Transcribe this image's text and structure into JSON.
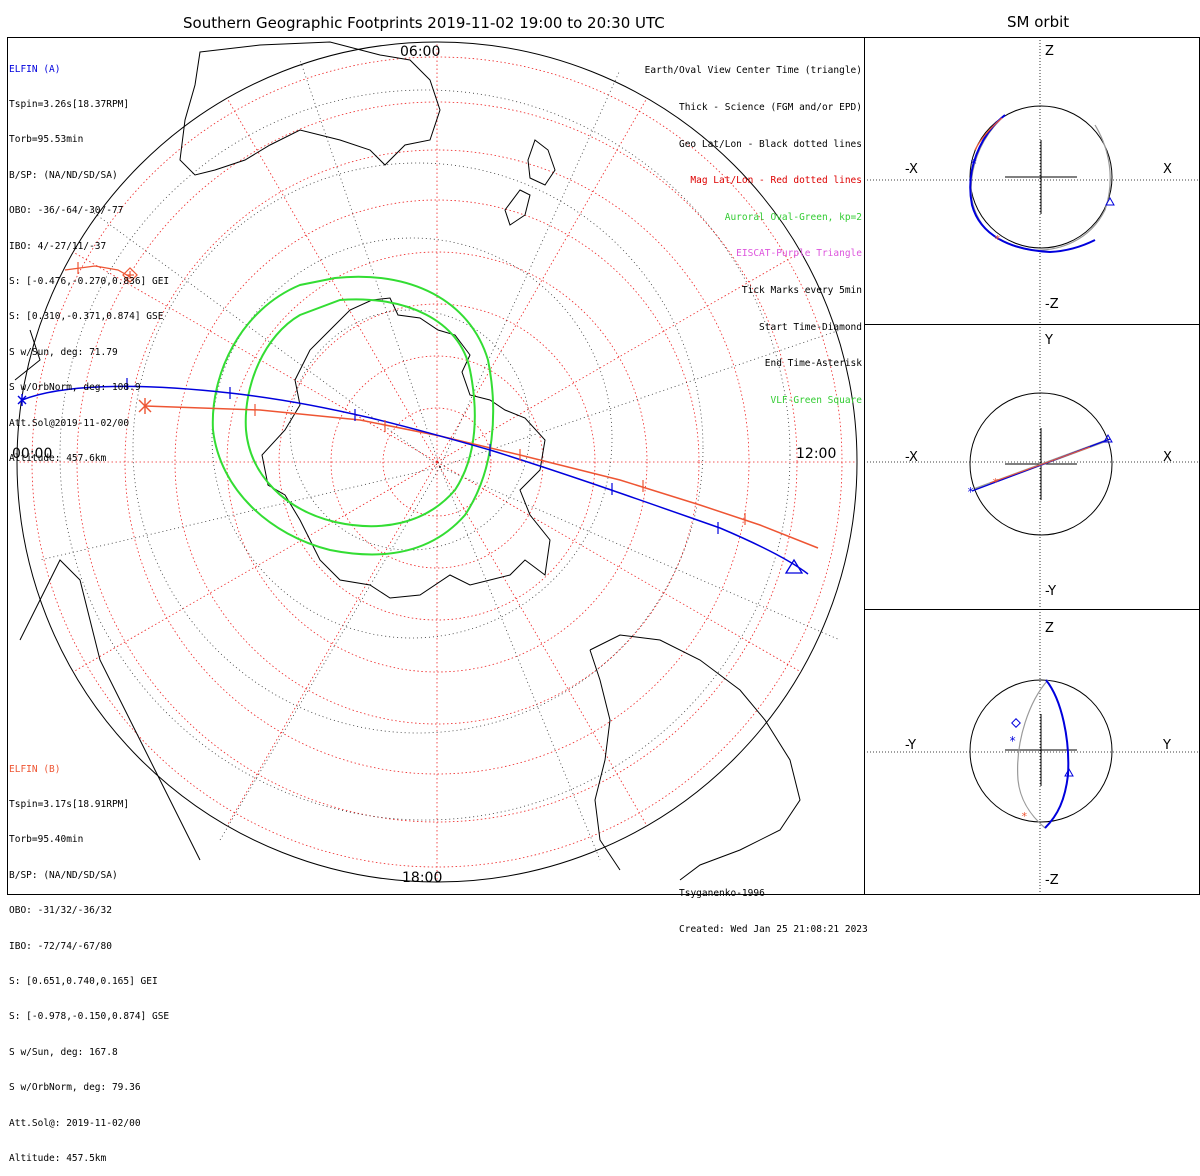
{
  "main_title": "Southern Geographic Footprints 2019-11-02 19:00 to 20:30 UTC",
  "orbit_title": "SM orbit",
  "colors": {
    "elfin_a": "#0000dd",
    "elfin_b": "#ee5533",
    "oval": "#33dd33",
    "grid_mag": "#ee2222",
    "grid_geo": "#000000",
    "eiscat": "#dd55dd"
  },
  "elfin_a": {
    "name": "ELFIN (A)",
    "lines": [
      "Tspin=3.26s[18.37RPM]",
      "Torb=95.53min",
      "B/SP: (NA/ND/SD/SA)",
      "OBO: -36/-64/-30/-77",
      "IBO: 4/-27/11/-37",
      "S: [-0.476,-0.270,0.836] GEI",
      "S: [0.310,-0.371,0.874] GSE",
      "S w/Sun, deg: 71.79",
      "S w/OrbNorm, deg: 108.9",
      "Att.Sol@2019-11-02/00",
      "Altitude: 457.6km"
    ]
  },
  "elfin_b": {
    "name": "ELFIN (B)",
    "lines": [
      "Tspin=3.17s[18.91RPM]",
      "Torb=95.40min",
      "B/SP: (NA/ND/SD/SA)",
      "OBO: -31/32/-36/32",
      "IBO: -72/74/-67/80",
      "S: [0.651,0.740,0.165] GEI",
      "S: [-0.978,-0.150,0.874] GSE",
      "S w/Sun, deg: 167.8",
      "S w/OrbNorm, deg: 79.36",
      "Att.Sol@: 2019-11-02/00",
      "Altitude: 457.5km"
    ]
  },
  "legend": [
    {
      "text": "Earth/Oval View Center Time (triangle)",
      "color": "#000000"
    },
    {
      "text": "Thick - Science (FGM and/or EPD)",
      "color": "#000000"
    },
    {
      "text": "Geo Lat/Lon - Black dotted lines",
      "color": "#000000"
    },
    {
      "text": "Mag Lat/Lon - Red dotted lines",
      "color": "#dd0000"
    },
    {
      "text": "Auroral Oval-Green, kp=2",
      "color": "#33cc33"
    },
    {
      "text": "EISCAT-Purple Triangle",
      "color": "#dd55dd"
    },
    {
      "text": "Tick Marks every 5min",
      "color": "#000000"
    },
    {
      "text": "Start Time-Diamond",
      "color": "#000000"
    },
    {
      "text": "End Time-Asterisk",
      "color": "#000000"
    },
    {
      "text": "VLF-Green Square",
      "color": "#33cc33"
    }
  ],
  "mlt_labels": {
    "top": "06:00",
    "left": "00:00",
    "right": "12:00",
    "bottom": "18:00"
  },
  "credit": [
    "Tsyganenko-1996",
    "Created: Wed Jan 25 21:08:21 2023"
  ],
  "orbit_panels": [
    {
      "left": "-X",
      "right": "X",
      "top": "Z",
      "bottom": "-Z"
    },
    {
      "left": "-X",
      "right": "X",
      "top": "Y",
      "bottom": "-Y"
    },
    {
      "left": "-Y",
      "right": "Y",
      "top": "Z",
      "bottom": "-Z"
    }
  ]
}
